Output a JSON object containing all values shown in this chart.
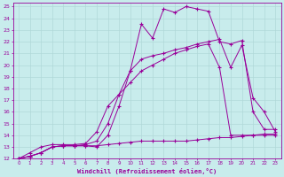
{
  "xlabel": "Windchill (Refroidissement éolien,°C)",
  "bg_color": "#c8ecec",
  "grid_color": "#b0d8d8",
  "line_color": "#990099",
  "xlim": [
    -0.5,
    23.5
  ],
  "ylim": [
    12,
    25.3
  ],
  "xticks": [
    0,
    1,
    2,
    3,
    4,
    5,
    6,
    7,
    8,
    9,
    10,
    11,
    12,
    13,
    14,
    15,
    16,
    17,
    18,
    19,
    20,
    21,
    22,
    23
  ],
  "yticks": [
    12,
    13,
    14,
    15,
    16,
    17,
    18,
    19,
    20,
    21,
    22,
    23,
    24,
    25
  ],
  "series": [
    [
      12.0,
      12.2,
      12.5,
      13.0,
      13.1,
      13.1,
      13.1,
      13.0,
      14.0,
      16.5,
      19.5,
      23.5,
      22.3,
      24.8,
      24.5,
      25.0,
      24.8,
      24.6,
      22.0,
      21.8,
      22.1,
      16.0,
      14.5,
      14.5
    ],
    [
      12.0,
      12.2,
      12.5,
      13.0,
      13.1,
      13.1,
      13.1,
      13.1,
      13.2,
      13.3,
      13.4,
      13.5,
      13.5,
      13.5,
      13.5,
      13.5,
      13.6,
      13.7,
      13.8,
      13.8,
      13.9,
      14.0,
      14.1,
      14.1
    ],
    [
      12.0,
      12.2,
      12.5,
      13.0,
      13.1,
      13.1,
      13.2,
      13.5,
      15.0,
      17.5,
      19.5,
      20.5,
      20.8,
      21.0,
      21.3,
      21.5,
      21.8,
      22.0,
      22.2,
      19.8,
      21.7,
      17.2,
      16.0,
      14.3
    ],
    [
      12.0,
      12.5,
      13.0,
      13.2,
      13.2,
      13.2,
      13.3,
      14.3,
      16.5,
      17.5,
      18.5,
      19.5,
      20.0,
      20.5,
      21.0,
      21.3,
      21.6,
      21.8,
      19.8,
      14.0,
      14.0,
      14.0,
      14.0,
      14.0
    ]
  ]
}
